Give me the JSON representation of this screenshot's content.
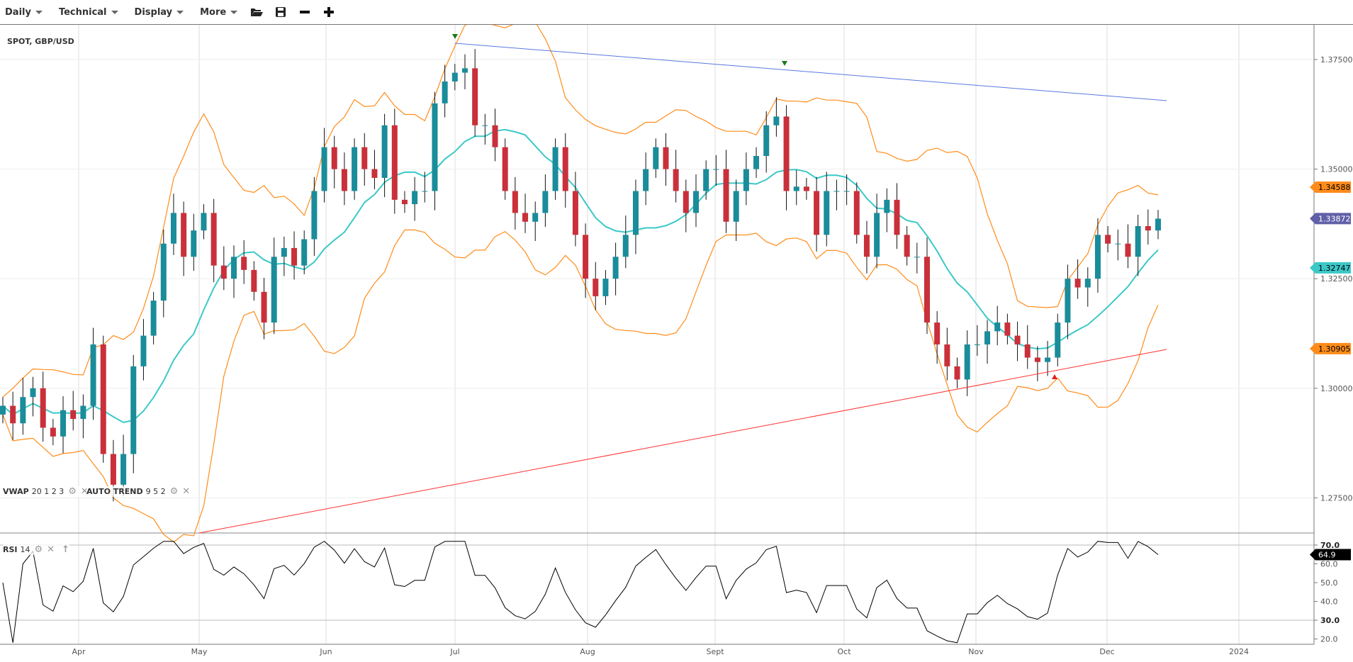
{
  "toolbar": {
    "menus": [
      {
        "label": "Daily"
      },
      {
        "label": "Technical"
      },
      {
        "label": "Display"
      },
      {
        "label": "More"
      }
    ],
    "icons": [
      "folder-open-icon",
      "save-icon",
      "zoom-out-icon",
      "zoom-in-icon"
    ]
  },
  "chart": {
    "title": "SPOT, GBP/USD",
    "indicators": [
      {
        "name": "VWAP",
        "params": "20 1 2 3"
      },
      {
        "name": "AUTO TREND",
        "params": "9 5 2"
      }
    ],
    "rsi": {
      "name": "RSI",
      "params": "14"
    }
  },
  "colors": {
    "up": "#1a8c9a",
    "down": "#c9303a",
    "bands": "#ff8c1a",
    "sma": "#3cc8c8",
    "resistance": "#5a78e0",
    "support": "#ff3030",
    "last_price_tag": "#6060a8",
    "rsi_line": "#000000"
  },
  "chart_data": {
    "type": "candlestick",
    "title": "SPOT, GBP/USD",
    "x_labels": [
      "Apr",
      "May",
      "Jun",
      "Jul",
      "Aug",
      "Sept",
      "Oct",
      "Nov",
      "Dec",
      "2024"
    ],
    "y_ticks": [
      "1.27500",
      "1.30000",
      "1.32500",
      "1.35000",
      "1.37500"
    ],
    "ylim": [
      1.268,
      1.3815
    ],
    "rsi_ticks": [
      "20.0",
      "30.0",
      "40.0",
      "50.0",
      "60.0",
      "70.0"
    ],
    "rsi_lim": [
      15,
      72
    ],
    "closes": [
      1.296,
      1.292,
      1.298,
      1.3,
      1.291,
      1.289,
      1.295,
      1.293,
      1.296,
      1.31,
      1.285,
      1.278,
      1.285,
      1.305,
      1.312,
      1.32,
      1.333,
      1.34,
      1.33,
      1.336,
      1.34,
      1.328,
      1.325,
      1.33,
      1.327,
      1.322,
      1.315,
      1.33,
      1.332,
      1.328,
      1.334,
      1.345,
      1.355,
      1.35,
      1.345,
      1.355,
      1.35,
      1.348,
      1.36,
      1.343,
      1.342,
      1.345,
      1.345,
      1.365,
      1.37,
      1.372,
      1.373,
      1.36,
      1.36,
      1.355,
      1.345,
      1.34,
      1.338,
      1.34,
      1.345,
      1.355,
      1.345,
      1.335,
      1.325,
      1.321,
      1.325,
      1.33,
      1.335,
      1.345,
      1.35,
      1.355,
      1.35,
      1.345,
      1.34,
      1.345,
      1.35,
      1.35,
      1.338,
      1.345,
      1.35,
      1.353,
      1.36,
      1.362,
      1.345,
      1.346,
      1.345,
      1.335,
      1.345,
      1.345,
      1.345,
      1.335,
      1.33,
      1.34,
      1.343,
      1.335,
      1.33,
      1.33,
      1.315,
      1.31,
      1.305,
      1.302,
      1.31,
      1.31,
      1.313,
      1.315,
      1.312,
      1.31,
      1.307,
      1.306,
      1.307,
      1.315,
      1.325,
      1.323,
      1.325,
      1.335,
      1.333,
      1.333,
      1.33,
      1.337,
      1.336,
      1.3387
    ],
    "price_tags": [
      {
        "label": "1.34588",
        "value": 1.34588,
        "color": "#ff8c1a",
        "text_color": "#000"
      },
      {
        "label": "1.338725",
        "value": 1.338725,
        "color": "#6060a8",
        "text_color": "#fff"
      },
      {
        "label": "1.32747",
        "value": 1.32747,
        "color": "#3cc8c8",
        "text_color": "#000"
      },
      {
        "label": "1.30905",
        "value": 1.30905,
        "color": "#ff8c1a",
        "text_color": "#000"
      }
    ],
    "rsi_tag": {
      "label": "64.9",
      "value": 64.9
    },
    "grid": true
  }
}
